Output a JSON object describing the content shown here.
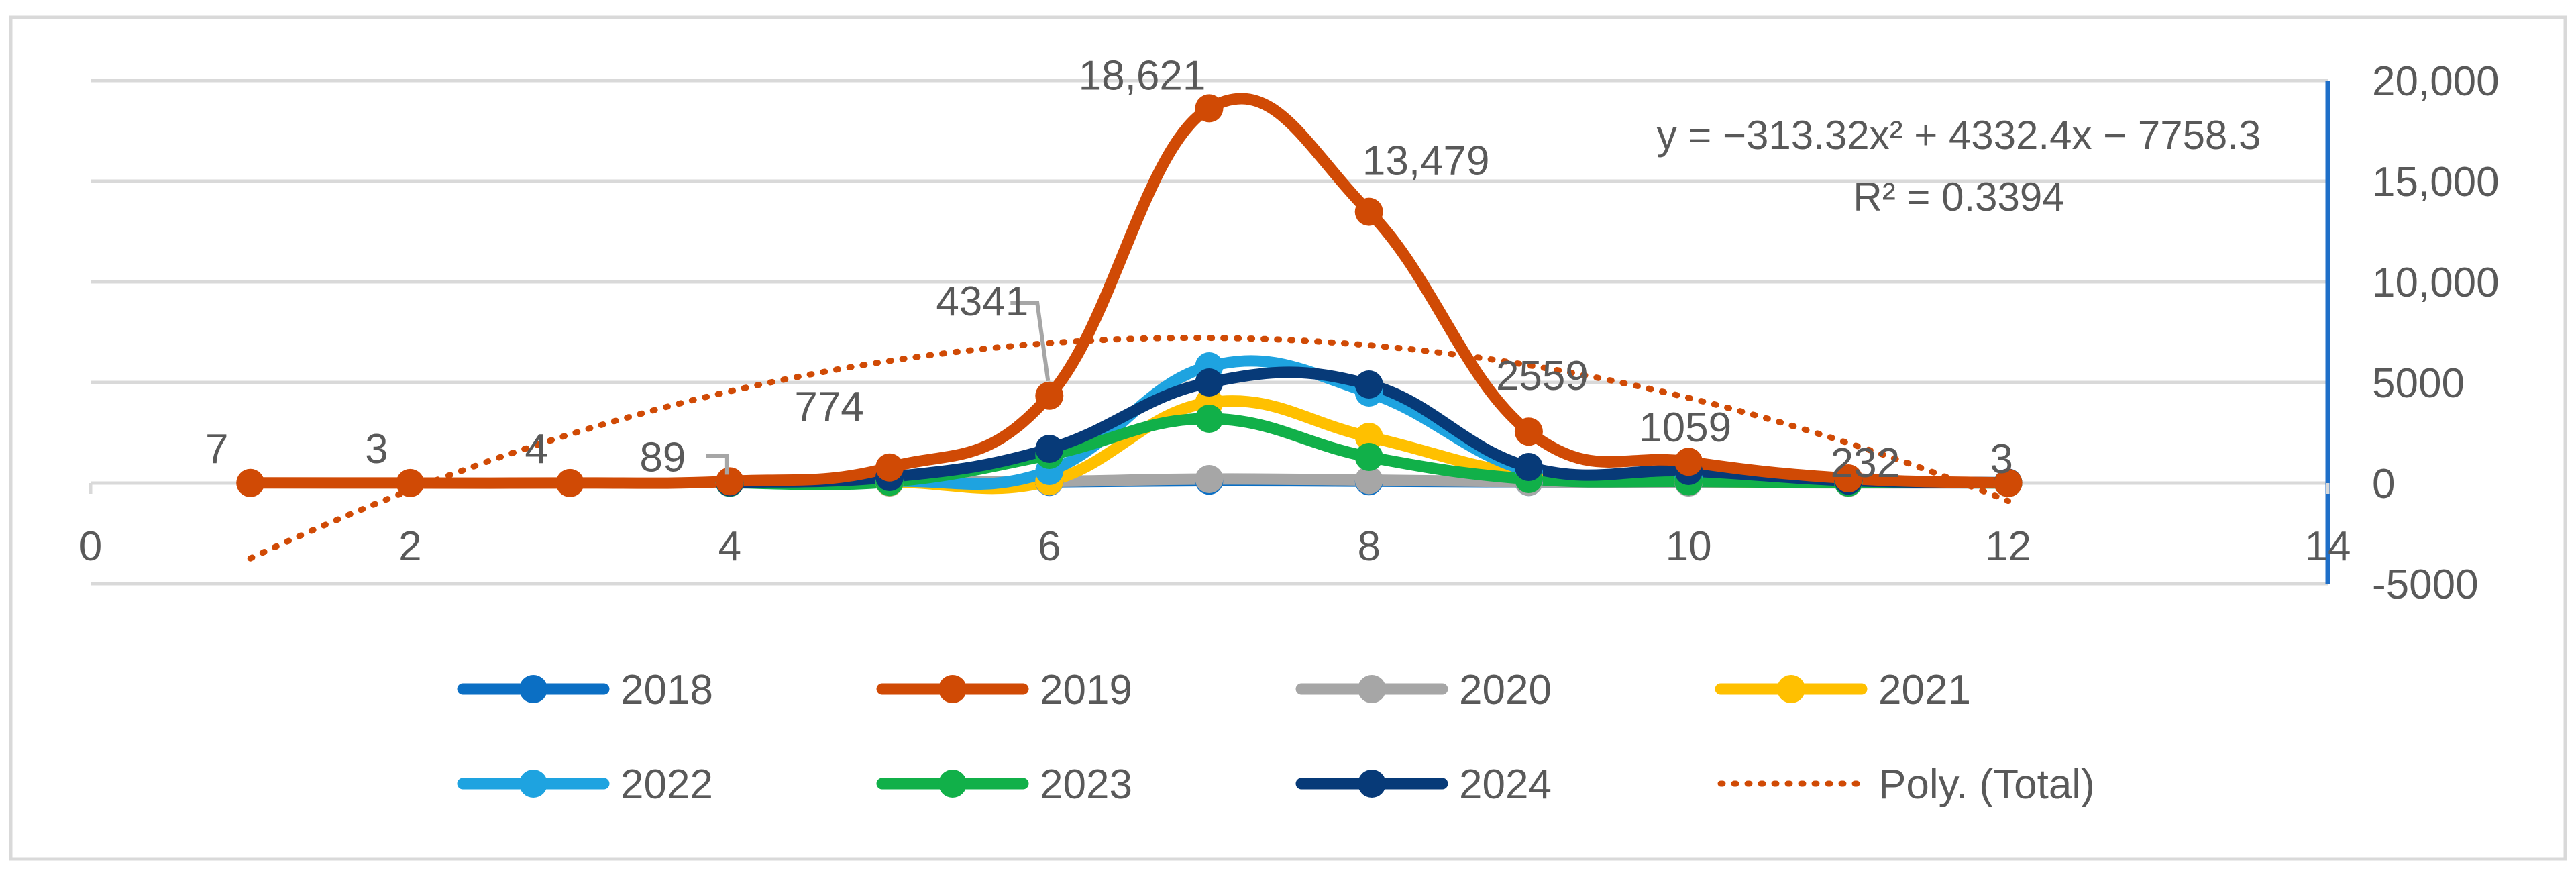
{
  "chart_data": {
    "type": "line",
    "title": "",
    "xlabel": "",
    "ylabel": "",
    "xlim": [
      0,
      14
    ],
    "ylim": [
      -5000,
      20000
    ],
    "x_ticks": [
      "0",
      "2",
      "4",
      "6",
      "8",
      "10",
      "12",
      "14"
    ],
    "y_ticks": [
      "-5000",
      "0",
      "5000",
      "10,000",
      "15,000",
      "20,000"
    ],
    "gridlines": true,
    "legend_position": "bottom",
    "series": [
      {
        "name": "2018",
        "color": "#0B6FC4",
        "x": [
          4,
          5,
          6,
          7,
          8,
          9,
          10,
          11,
          12
        ],
        "y": [
          20,
          80,
          60,
          120,
          90,
          60,
          40,
          20,
          10
        ]
      },
      {
        "name": "2019",
        "color": "#D04A05",
        "x": [
          1,
          2,
          3,
          4,
          5,
          6,
          7,
          8,
          9,
          10,
          11,
          12
        ],
        "y": [
          7,
          3,
          4,
          89,
          774,
          4341,
          18621,
          13479,
          2559,
          1059,
          232,
          3
        ]
      },
      {
        "name": "2020",
        "color": "#A6A6A6",
        "x": [
          4,
          5,
          6,
          7,
          8,
          9,
          10,
          11,
          12
        ],
        "y": [
          10,
          30,
          80,
          200,
          150,
          60,
          30,
          10,
          5
        ]
      },
      {
        "name": "2021",
        "color": "#FFC000",
        "x": [
          4,
          5,
          6,
          7,
          8,
          9,
          10,
          11,
          12
        ],
        "y": [
          20,
          50,
          100,
          4000,
          2300,
          400,
          100,
          40,
          10
        ]
      },
      {
        "name": "2022",
        "color": "#1EA3E0",
        "x": [
          4,
          5,
          6,
          7,
          8,
          9,
          10,
          11,
          12
        ],
        "y": [
          20,
          80,
          600,
          5800,
          4500,
          600,
          200,
          60,
          10
        ]
      },
      {
        "name": "2023",
        "color": "#11B049",
        "x": [
          4,
          5,
          6,
          7,
          8,
          9,
          10,
          11,
          12
        ],
        "y": [
          20,
          60,
          1400,
          3200,
          1300,
          200,
          80,
          30,
          10
        ]
      },
      {
        "name": "2024",
        "color": "#073A78",
        "x": [
          4,
          5,
          6,
          7,
          8,
          9,
          10,
          11,
          12
        ],
        "y": [
          40,
          300,
          1700,
          5000,
          4900,
          800,
          600,
          120,
          20
        ]
      }
    ],
    "trendline": {
      "name": "Poly. (Total)",
      "color": "#D04A05",
      "style": "dotted",
      "a": -313.32,
      "b": 4332.4,
      "c": -7758.3,
      "x_range": [
        1,
        12
      ],
      "equation": "y = −313.32x² + 4332.4x − 7758.3",
      "r_squared": "R² = 0.3394"
    },
    "data_labels": [
      {
        "text": "7",
        "x": 1,
        "y": 7,
        "leader": false
      },
      {
        "text": "3",
        "x": 2,
        "y": 3,
        "leader": false
      },
      {
        "text": "4",
        "x": 3,
        "y": 4,
        "leader": false
      },
      {
        "text": "89",
        "x": 4,
        "y": 89,
        "leader": true
      },
      {
        "text": "774",
        "x": 5,
        "y": 774,
        "leader": false
      },
      {
        "text": "4341",
        "x": 6,
        "y": 4341,
        "leader": true
      },
      {
        "text": "18,621",
        "x": 7,
        "y": 18621,
        "leader": false
      },
      {
        "text": "13,479",
        "x": 8,
        "y": 13479,
        "leader": false
      },
      {
        "text": "2559",
        "x": 9,
        "y": 2559,
        "leader": false
      },
      {
        "text": "1059",
        "x": 10,
        "y": 1059,
        "leader": false
      },
      {
        "text": "232",
        "x": 11,
        "y": 232,
        "leader": false
      },
      {
        "text": "3",
        "x": 12,
        "y": 3,
        "leader": false
      }
    ],
    "legend": [
      {
        "label": "2018",
        "color": "#0B6FC4",
        "style": "marker-line"
      },
      {
        "label": "2019",
        "color": "#D04A05",
        "style": "marker-line"
      },
      {
        "label": "2020",
        "color": "#A6A6A6",
        "style": "marker-line"
      },
      {
        "label": "2021",
        "color": "#FFC000",
        "style": "marker-line"
      },
      {
        "label": "2022",
        "color": "#1EA3E0",
        "style": "marker-line"
      },
      {
        "label": "2023",
        "color": "#11B049",
        "style": "marker-line"
      },
      {
        "label": "2024",
        "color": "#073A78",
        "style": "marker-line"
      },
      {
        "label": "Poly. (Total)",
        "color": "#D04A05",
        "style": "dotted"
      }
    ]
  }
}
